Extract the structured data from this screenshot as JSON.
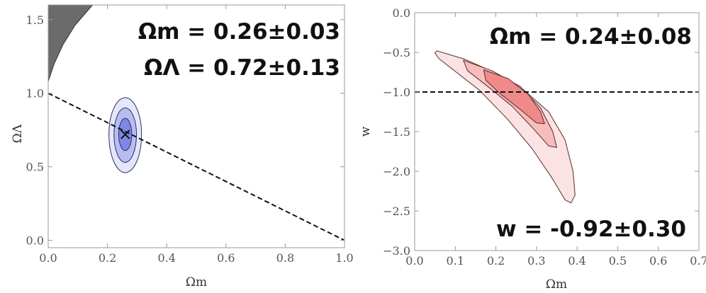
{
  "chart_data": [
    {
      "type": "contour",
      "xlabel": "Ωm",
      "ylabel": "ΩΛ",
      "xlim": [
        0.0,
        1.0
      ],
      "ylim": [
        -0.05,
        1.6
      ],
      "xticks": [
        0.0,
        0.2,
        0.4,
        0.6,
        0.8,
        1.0
      ],
      "yticks": [
        0.0,
        0.5,
        1.0,
        1.5
      ],
      "xtick_labels": [
        "0.0",
        "0.2",
        "0.4",
        "0.6",
        "0.8",
        "1.0"
      ],
      "ytick_labels": [
        "0.0",
        "0.5",
        "1.0",
        "1.5"
      ],
      "annotations": [
        "Ωm = 0.26±0.03",
        "ΩΛ = 0.72±0.13"
      ],
      "best_fit": {
        "x": 0.26,
        "y": 0.72,
        "marker": "×"
      },
      "reference_line": {
        "style": "dashed",
        "from": [
          0.0,
          1.0
        ],
        "to": [
          1.0,
          0.0
        ]
      },
      "excluded_region": {
        "color": "#6b6b6b",
        "boundary": [
          [
            0.0,
            1.6
          ],
          [
            0.0,
            1.08
          ],
          [
            0.02,
            1.2
          ],
          [
            0.05,
            1.33
          ],
          [
            0.09,
            1.46
          ],
          [
            0.15,
            1.6
          ]
        ]
      },
      "contours": [
        {
          "level": "3σ",
          "color": "#e4e6fa",
          "center": [
            0.26,
            0.72
          ],
          "x_halfwidth": 0.055,
          "y_up": 0.25,
          "y_down": 0.26
        },
        {
          "level": "2σ",
          "color": "#b7bcf2",
          "center": [
            0.26,
            0.72
          ],
          "x_halfwidth": 0.038,
          "y_up": 0.18,
          "y_down": 0.19
        },
        {
          "level": "1σ",
          "color": "#7e86e6",
          "center": [
            0.26,
            0.72
          ],
          "x_halfwidth": 0.022,
          "y_up": 0.11,
          "y_down": 0.11
        }
      ]
    },
    {
      "type": "contour",
      "xlabel": "Ωm",
      "ylabel": "w",
      "xlim": [
        0.0,
        0.7
      ],
      "ylim": [
        -3.0,
        0.0
      ],
      "xticks": [
        0.0,
        0.1,
        0.2,
        0.3,
        0.4,
        0.5,
        0.6,
        0.7
      ],
      "yticks": [
        0.0,
        -0.5,
        -1.0,
        -1.5,
        -2.0,
        -2.5,
        -3.0
      ],
      "xtick_labels": [
        "0.0",
        "0.1",
        "0.2",
        "0.3",
        "0.4",
        "0.5",
        "0.6",
        "0.7"
      ],
      "ytick_labels": [
        "0.0",
        "−0.5",
        "−1.0",
        "−1.5",
        "−2.0",
        "−2.5",
        "−3.0"
      ],
      "annotations": [
        "Ωm = 0.24±0.08",
        "w = -0.92±0.30"
      ],
      "reference_line": {
        "style": "dashed",
        "y": -1.0
      },
      "contours": [
        {
          "level": "3σ",
          "color": "#fbe3e3",
          "outline": [
            [
              0.055,
              -0.48
            ],
            [
              0.12,
              -0.58
            ],
            [
              0.2,
              -0.76
            ],
            [
              0.27,
              -0.98
            ],
            [
              0.33,
              -1.25
            ],
            [
              0.37,
              -1.6
            ],
            [
              0.39,
              -2.0
            ],
            [
              0.395,
              -2.3
            ],
            [
              0.385,
              -2.4
            ],
            [
              0.37,
              -2.36
            ],
            [
              0.34,
              -2.1
            ],
            [
              0.29,
              -1.72
            ],
            [
              0.23,
              -1.35
            ],
            [
              0.16,
              -0.98
            ],
            [
              0.1,
              -0.74
            ],
            [
              0.06,
              -0.58
            ],
            [
              0.05,
              -0.51
            ]
          ]
        },
        {
          "level": "2σ",
          "color": "#f7bcbc",
          "outline": [
            [
              0.12,
              -0.6
            ],
            [
              0.19,
              -0.73
            ],
            [
              0.26,
              -0.93
            ],
            [
              0.31,
              -1.2
            ],
            [
              0.34,
              -1.5
            ],
            [
              0.35,
              -1.7
            ],
            [
              0.33,
              -1.68
            ],
            [
              0.29,
              -1.45
            ],
            [
              0.24,
              -1.18
            ],
            [
              0.18,
              -0.93
            ],
            [
              0.13,
              -0.73
            ]
          ]
        },
        {
          "level": "1σ",
          "color": "#ef8a8a",
          "outline": [
            [
              0.17,
              -0.72
            ],
            [
              0.23,
              -0.83
            ],
            [
              0.28,
              -1.03
            ],
            [
              0.31,
              -1.25
            ],
            [
              0.32,
              -1.4
            ],
            [
              0.3,
              -1.39
            ],
            [
              0.26,
              -1.22
            ],
            [
              0.21,
              -1.02
            ],
            [
              0.175,
              -0.85
            ]
          ]
        }
      ]
    }
  ]
}
